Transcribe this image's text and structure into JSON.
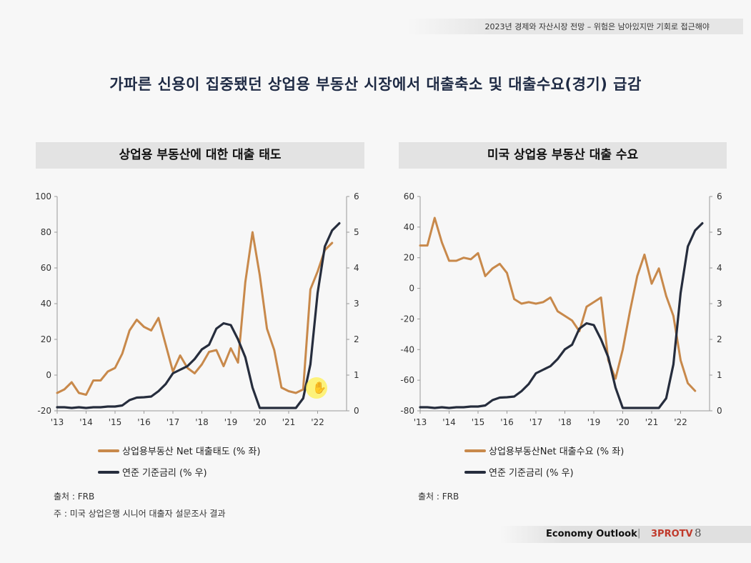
{
  "header": {
    "text": "2023년 경제와 자산시장 전망 – 위험은 남아있지만 기회로 접근해야"
  },
  "main_title": "가파른 신용이 집중됐던 상업용 부동산 시장에서 대출축소 및 대출수요(경기) 급감",
  "panels": {
    "left": {
      "title": "상업용 부동산에 대한 대출 태도",
      "legend": [
        "상업용부동산 Net 대출태도 (% 좌)",
        "연준 기준금리 (% 우)"
      ],
      "source": "출처 : FRB",
      "note": "주 : 미국 상업은행 시니어 대출자 설문조사 결과"
    },
    "right": {
      "title": "미국 상업용 부동산 대출 수요",
      "legend": [
        "상업용부동산Net 대출수요 (% 좌)",
        "연준 기준금리 (% 우)"
      ],
      "source": "출처 : FRB"
    }
  },
  "footer": {
    "outlook": "Economy Outlook",
    "separator": "|",
    "brand": "3PROTV",
    "page": "8"
  },
  "colors": {
    "attitude": "#c8894b",
    "rate": "#262d3d"
  },
  "chart_data": [
    {
      "type": "line",
      "title": "상업용 부동산에 대한 대출 태도",
      "x_tick_labels": [
        "'13",
        "'14",
        "'15",
        "'16",
        "'17",
        "'18",
        "'19",
        "'20",
        "'21",
        "'22"
      ],
      "x_range": [
        2013.0,
        2023.0
      ],
      "y_left_ticks": [
        "100",
        "80",
        "60",
        "40",
        "20",
        "0",
        "-20"
      ],
      "y_left_range": [
        -20,
        100
      ],
      "y_right_ticks": [
        "6",
        "5",
        "4",
        "3",
        "2",
        "1",
        "0"
      ],
      "y_right_range": [
        0,
        6
      ],
      "series": [
        {
          "name": "상업용부동산 Net 대출태도 (% 좌)",
          "axis": "left",
          "color": "#c8894b",
          "x": [
            2013.0,
            2013.25,
            2013.5,
            2013.75,
            2014.0,
            2014.25,
            2014.5,
            2014.75,
            2015.0,
            2015.25,
            2015.5,
            2015.75,
            2016.0,
            2016.25,
            2016.5,
            2016.75,
            2017.0,
            2017.25,
            2017.5,
            2017.75,
            2018.0,
            2018.25,
            2018.5,
            2018.75,
            2019.0,
            2019.25,
            2019.5,
            2019.75,
            2020.0,
            2020.25,
            2020.5,
            2020.75,
            2021.0,
            2021.25,
            2021.5,
            2021.75,
            2022.0,
            2022.25,
            2022.5
          ],
          "y": [
            -10,
            -8,
            -4,
            -10,
            -11,
            -3,
            -3,
            2,
            4,
            12,
            25,
            31,
            27,
            25,
            32,
            17,
            2,
            11,
            4,
            1,
            6,
            13,
            14,
            5,
            15,
            7,
            52,
            80,
            56,
            26,
            14,
            -7,
            -9,
            -10,
            -8,
            48,
            58,
            70,
            74
          ]
        },
        {
          "name": "연준 기준금리 (% 우)",
          "axis": "right",
          "color": "#262d3d",
          "x": [
            2013.0,
            2013.25,
            2013.5,
            2013.75,
            2014.0,
            2014.25,
            2014.5,
            2014.75,
            2015.0,
            2015.25,
            2015.5,
            2015.75,
            2016.0,
            2016.25,
            2016.5,
            2016.75,
            2017.0,
            2017.25,
            2017.5,
            2017.75,
            2018.0,
            2018.25,
            2018.5,
            2018.75,
            2019.0,
            2019.25,
            2019.5,
            2019.75,
            2020.0,
            2020.25,
            2020.5,
            2020.75,
            2021.0,
            2021.25,
            2021.5,
            2021.75,
            2022.0,
            2022.25,
            2022.5,
            2022.75
          ],
          "y": [
            0.1,
            0.1,
            0.08,
            0.1,
            0.08,
            0.1,
            0.1,
            0.12,
            0.12,
            0.15,
            0.3,
            0.37,
            0.38,
            0.4,
            0.55,
            0.75,
            1.05,
            1.15,
            1.25,
            1.45,
            1.72,
            1.85,
            2.3,
            2.45,
            2.4,
            2.0,
            1.5,
            0.65,
            0.08,
            0.08,
            0.08,
            0.08,
            0.08,
            0.08,
            0.35,
            1.3,
            3.3,
            4.6,
            5.05,
            5.25
          ]
        }
      ]
    },
    {
      "type": "line",
      "title": "미국 상업용 부동산 대출 수요",
      "x_tick_labels": [
        "'13",
        "'14",
        "'15",
        "'16",
        "'17",
        "'18",
        "'19",
        "'20",
        "'21",
        "'22"
      ],
      "x_range": [
        2013.0,
        2023.0
      ],
      "y_left_ticks": [
        "60",
        "40",
        "20",
        "0",
        "-20",
        "-40",
        "-60",
        "-80"
      ],
      "y_left_range": [
        -80,
        60
      ],
      "y_right_ticks": [
        "6",
        "5",
        "4",
        "3",
        "2",
        "1",
        "0"
      ],
      "y_right_range": [
        0,
        6
      ],
      "series": [
        {
          "name": "상업용부동산Net 대출수요 (% 좌)",
          "axis": "left",
          "color": "#c8894b",
          "x": [
            2013.0,
            2013.25,
            2013.5,
            2013.75,
            2014.0,
            2014.25,
            2014.5,
            2014.75,
            2015.0,
            2015.25,
            2015.5,
            2015.75,
            2016.0,
            2016.25,
            2016.5,
            2016.75,
            2017.0,
            2017.25,
            2017.5,
            2017.75,
            2018.0,
            2018.25,
            2018.5,
            2018.75,
            2019.0,
            2019.25,
            2019.5,
            2019.75,
            2020.0,
            2020.25,
            2020.5,
            2020.75,
            2021.0,
            2021.25,
            2021.5,
            2021.75,
            2022.0,
            2022.25,
            2022.5
          ],
          "y": [
            28,
            28,
            46,
            30,
            18,
            18,
            20,
            19,
            23,
            8,
            13,
            16,
            10,
            -7,
            -10,
            -9,
            -10,
            -9,
            -6,
            -15,
            -18,
            -21,
            -28,
            -12,
            -9,
            -6,
            -47,
            -59,
            -40,
            -15,
            8,
            22,
            3,
            13,
            -5,
            -18,
            -47,
            -62,
            -67
          ]
        },
        {
          "name": "연준 기준금리 (% 우)",
          "axis": "right",
          "color": "#262d3d",
          "x": [
            2013.0,
            2013.25,
            2013.5,
            2013.75,
            2014.0,
            2014.25,
            2014.5,
            2014.75,
            2015.0,
            2015.25,
            2015.5,
            2015.75,
            2016.0,
            2016.25,
            2016.5,
            2016.75,
            2017.0,
            2017.25,
            2017.5,
            2017.75,
            2018.0,
            2018.25,
            2018.5,
            2018.75,
            2019.0,
            2019.25,
            2019.5,
            2019.75,
            2020.0,
            2020.25,
            2020.5,
            2020.75,
            2021.0,
            2021.25,
            2021.5,
            2021.75,
            2022.0,
            2022.25,
            2022.5,
            2022.75
          ],
          "y": [
            0.1,
            0.1,
            0.08,
            0.1,
            0.08,
            0.1,
            0.1,
            0.12,
            0.12,
            0.15,
            0.3,
            0.37,
            0.38,
            0.4,
            0.55,
            0.75,
            1.05,
            1.15,
            1.25,
            1.45,
            1.72,
            1.85,
            2.3,
            2.45,
            2.4,
            2.0,
            1.5,
            0.65,
            0.08,
            0.08,
            0.08,
            0.08,
            0.08,
            0.08,
            0.35,
            1.3,
            3.3,
            4.6,
            5.05,
            5.25
          ]
        }
      ]
    }
  ]
}
